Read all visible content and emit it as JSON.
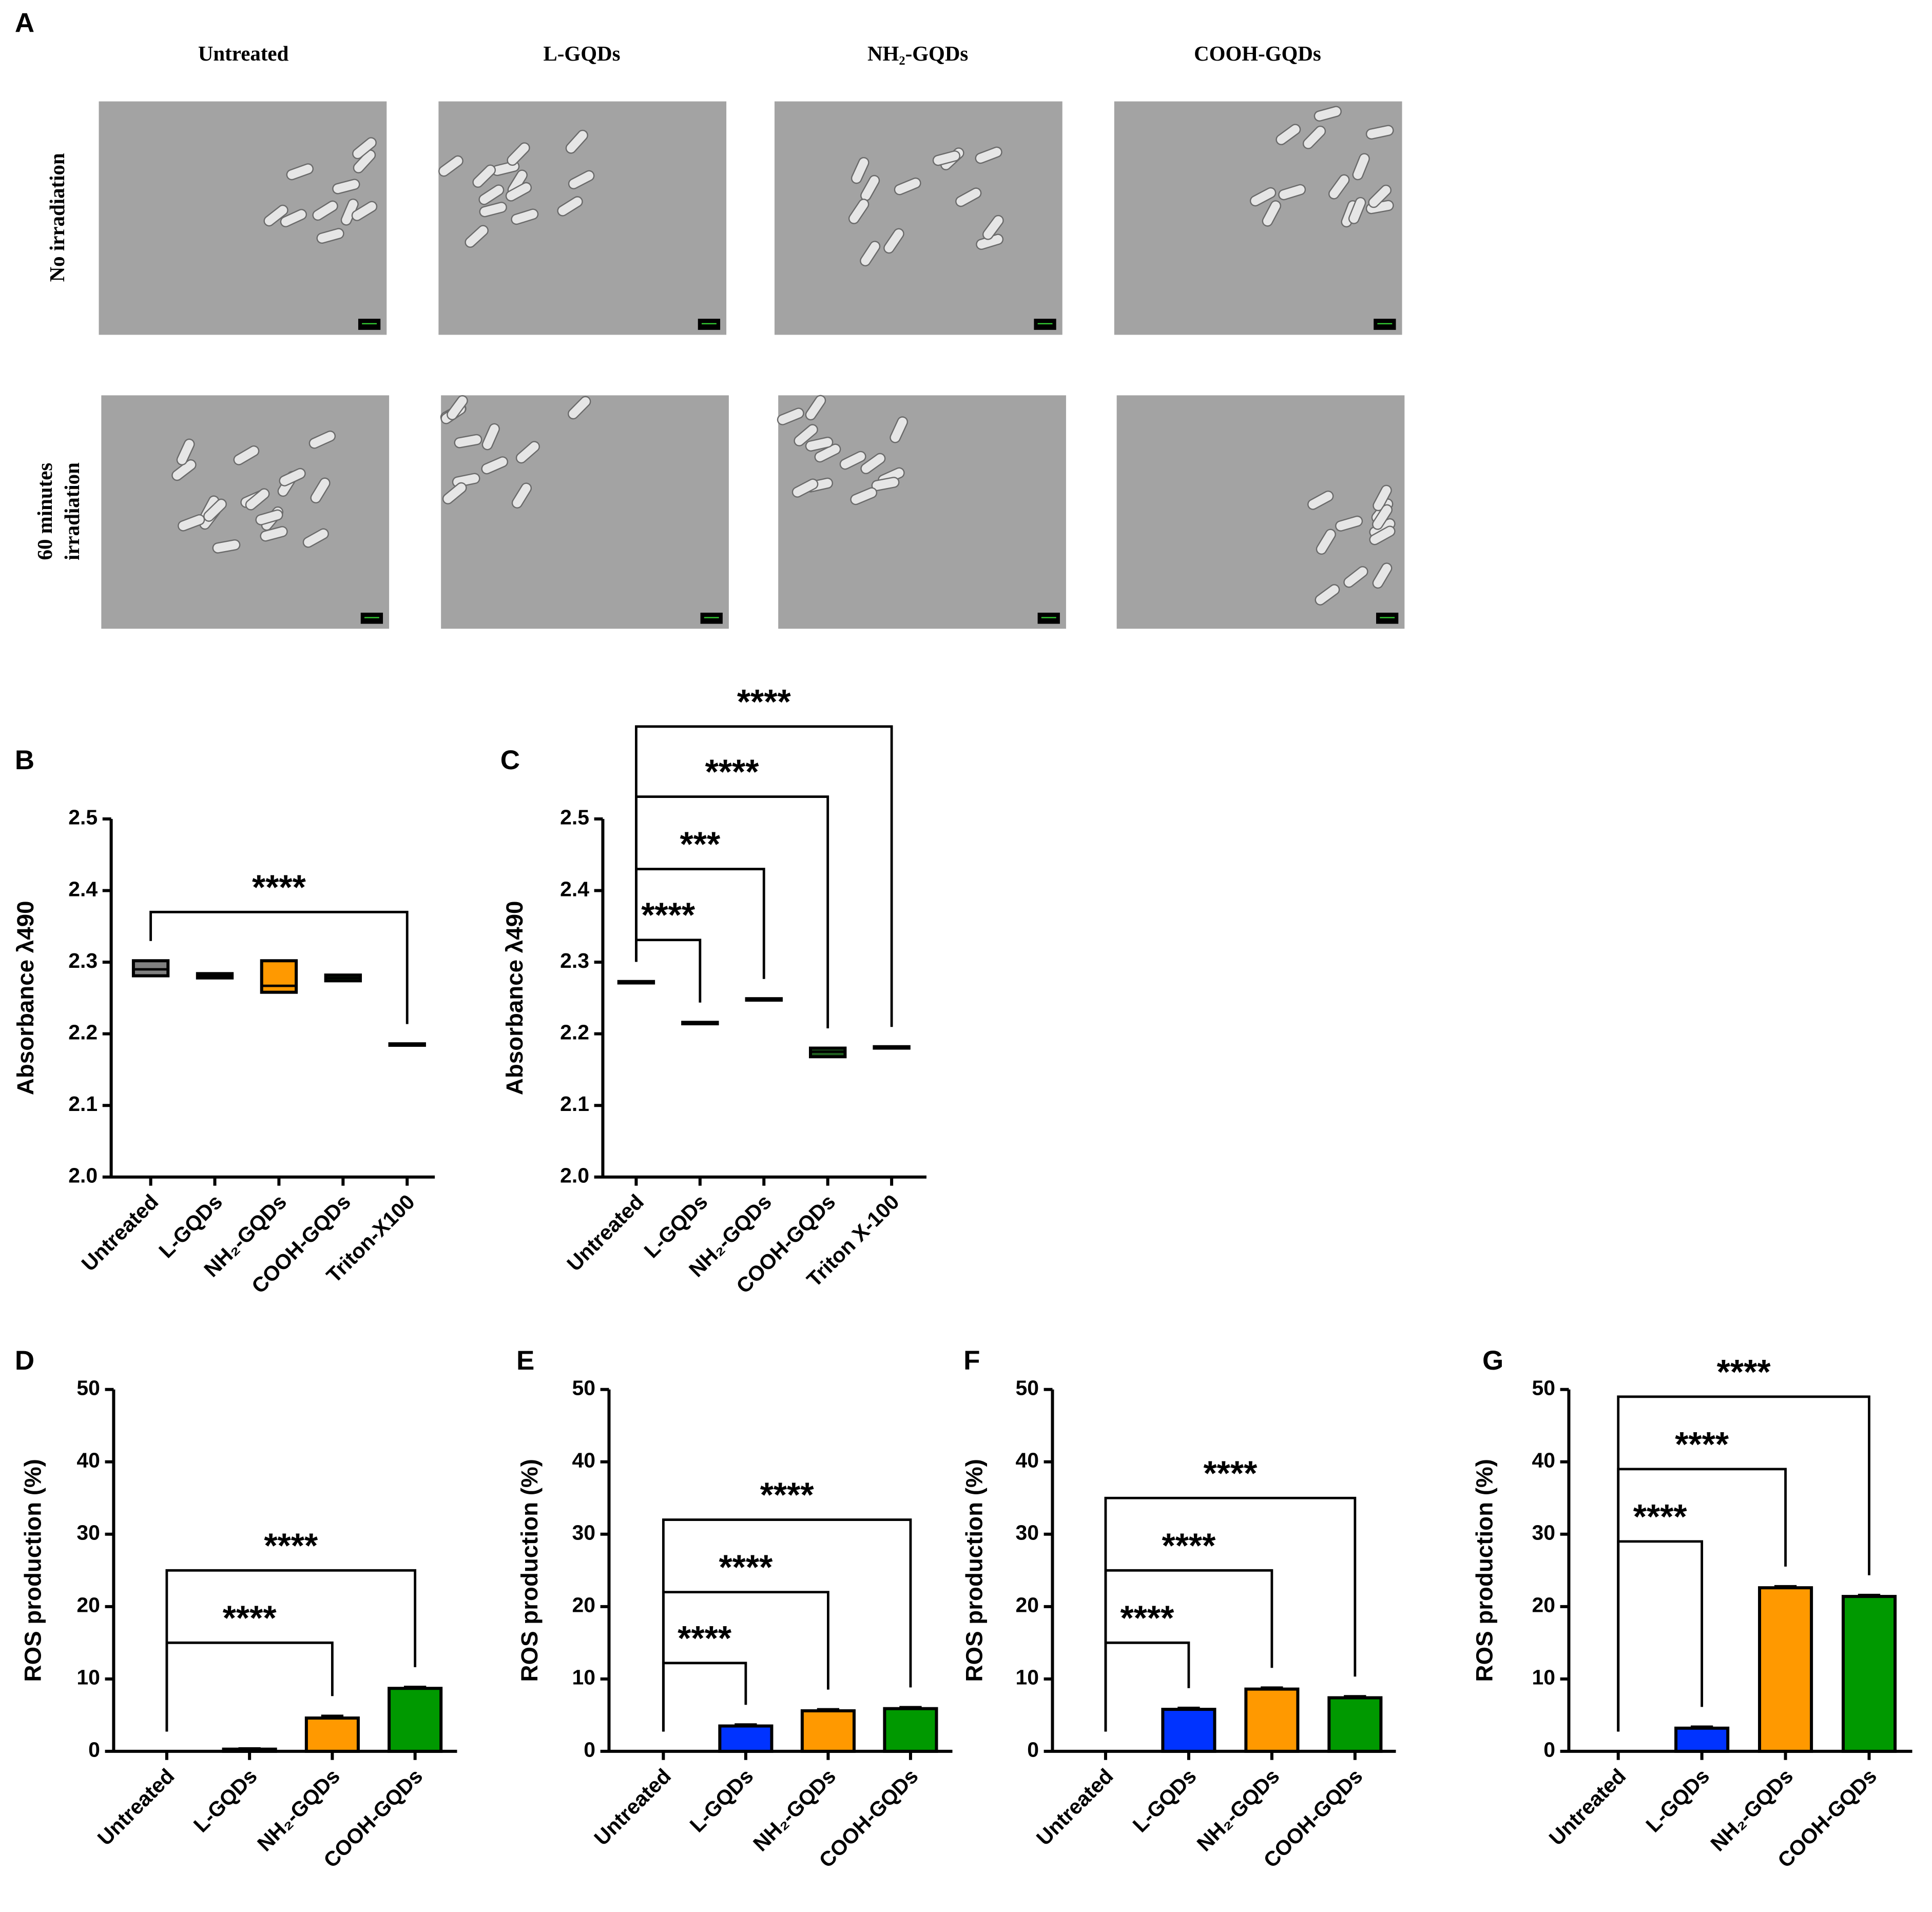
{
  "panel_a": {
    "label": "A",
    "columns": [
      "Untreated",
      "L-GQDs",
      "NH₂-GQDs",
      "COOH-GQDs"
    ],
    "rows": [
      [
        "No irradiation"
      ],
      [
        "60 minutes",
        "irradiation"
      ]
    ]
  },
  "chart_data": [
    {
      "type": "box",
      "panel": "B",
      "y_label": "Absorbance λ490",
      "categories": [
        "Untreated",
        "L-GQDs",
        "NH₂-GQDs",
        "COOH-GQDs",
        "Triton-X100"
      ],
      "min": [
        2.281,
        2.278,
        2.258,
        2.274,
        2.184
      ],
      "max": [
        2.302,
        2.284,
        2.302,
        2.282,
        2.186
      ],
      "median": [
        2.29,
        2.281,
        2.267,
        2.278,
        2.185
      ],
      "colors": [
        "#808080",
        "#1a1a80",
        "#ff9900",
        "#1f5f1f",
        "#000000"
      ],
      "ylim": [
        2.0,
        2.5
      ],
      "yticks": [
        {
          "value": 2,
          "label": "2.0"
        },
        2.1,
        2.2,
        2.3,
        2.4,
        2.5
      ],
      "annotations": [
        {
          "text": "****",
          "from": 0,
          "to": 4,
          "y": 2.37
        }
      ]
    },
    {
      "type": "box",
      "panel": "C",
      "y_label": "Absorbance λ490",
      "categories": [
        "Untreated",
        "L-GQDs",
        "NH₂-GQDs",
        "COOH-GQDs",
        "Triton X-100"
      ],
      "min": [
        2.271,
        2.214,
        2.247,
        2.168,
        2.18
      ],
      "max": [
        2.273,
        2.216,
        2.249,
        2.18,
        2.182
      ],
      "median": [
        2.272,
        2.215,
        2.248,
        2.175,
        2.181
      ],
      "colors": [
        "#333333",
        "#1a1a80",
        "#333333",
        "#1f5f1f",
        "#000000"
      ],
      "ylim": [
        2.0,
        2.5
      ],
      "yticks": [
        {
          "value": 2,
          "label": "2.0"
        },
        2.1,
        2.2,
        2.3,
        2.4,
        2.5
      ],
      "annotations": [
        {
          "text": "****",
          "from": 0,
          "to": 1,
          "y": 2.331
        },
        {
          "text": "***",
          "from": 0,
          "to": 2,
          "y": 2.43
        },
        {
          "text": "****",
          "from": 0,
          "to": 3,
          "y": 2.531
        },
        {
          "text": "****",
          "from": 0,
          "to": 4,
          "y": 2.629
        }
      ]
    },
    {
      "type": "bar",
      "panel": "D",
      "y_label": "ROS production (%)",
      "categories": [
        "Untreated",
        "L-GQDs",
        "NH₂-GQDs",
        "COOH-GQDs"
      ],
      "values": [
        0,
        0.3,
        4.6,
        8.7
      ],
      "errors": [
        0,
        0.1,
        0.3,
        0.2
      ],
      "colors": [
        "#ffffff",
        "#0033ff",
        "#ff9900",
        "#009900"
      ],
      "ylim": [
        0,
        50
      ],
      "yticks": [
        0,
        10,
        20,
        30,
        40,
        50
      ],
      "annotations": [
        {
          "text": "****",
          "from": 0,
          "to": 2,
          "y": 15
        },
        {
          "text": "****",
          "from": 0,
          "to": 3,
          "y": 25
        }
      ]
    },
    {
      "type": "bar",
      "panel": "E",
      "y_label": "ROS production (%)",
      "categories": [
        "Untreated",
        "L-GQDs",
        "NH₂-GQDs",
        "COOH-GQDs"
      ],
      "values": [
        0,
        3.5,
        5.6,
        5.9
      ],
      "errors": [
        0,
        0.2,
        0.2,
        0.2
      ],
      "colors": [
        "#ffffff",
        "#0033ff",
        "#ff9900",
        "#009900"
      ],
      "ylim": [
        0,
        50
      ],
      "yticks": [
        0,
        10,
        20,
        30,
        40,
        50
      ],
      "annotations": [
        {
          "text": "****",
          "from": 0,
          "to": 1,
          "y": 12.2
        },
        {
          "text": "****",
          "from": 0,
          "to": 2,
          "y": 22
        },
        {
          "text": "****",
          "from": 0,
          "to": 3,
          "y": 32
        }
      ]
    },
    {
      "type": "bar",
      "panel": "F",
      "y_label": "ROS production (%)",
      "categories": [
        "Untreated",
        "L-GQDs",
        "NH₂-GQDs",
        "COOH-GQDs"
      ],
      "values": [
        0,
        5.8,
        8.6,
        7.4
      ],
      "errors": [
        0,
        0.2,
        0.2,
        0.2
      ],
      "colors": [
        "#ffffff",
        "#0033ff",
        "#ff9900",
        "#009900"
      ],
      "ylim": [
        0,
        50
      ],
      "yticks": [
        0,
        10,
        20,
        30,
        40,
        50
      ],
      "annotations": [
        {
          "text": "****",
          "from": 0,
          "to": 1,
          "y": 15
        },
        {
          "text": "****",
          "from": 0,
          "to": 2,
          "y": 25
        },
        {
          "text": "****",
          "from": 0,
          "to": 3,
          "y": 35
        }
      ]
    },
    {
      "type": "bar",
      "panel": "G",
      "y_label": "ROS production (%)",
      "categories": [
        "Untreated",
        "L-GQDs",
        "NH₂-GQDs",
        "COOH-GQDs"
      ],
      "values": [
        0,
        3.2,
        22.6,
        21.4
      ],
      "errors": [
        0,
        0.2,
        0.2,
        0.2
      ],
      "colors": [
        "#ffffff",
        "#0033ff",
        "#ff9900",
        "#009900"
      ],
      "ylim": [
        0,
        50
      ],
      "yticks": [
        0,
        10,
        20,
        30,
        40,
        50
      ],
      "annotations": [
        {
          "text": "****",
          "from": 0,
          "to": 1,
          "y": 29
        },
        {
          "text": "****",
          "from": 0,
          "to": 2,
          "y": 39
        },
        {
          "text": "****",
          "from": 0,
          "to": 3,
          "y": 49
        }
      ]
    }
  ]
}
